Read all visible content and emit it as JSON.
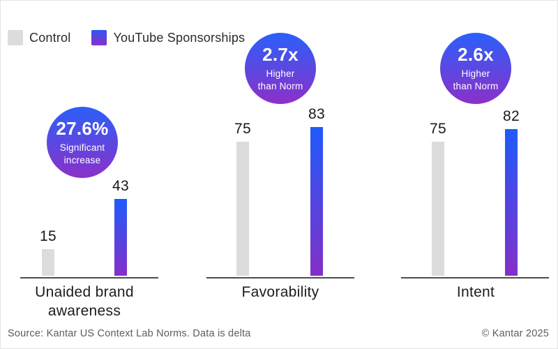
{
  "legend": {
    "items": [
      {
        "label": "Control",
        "color": "#dcdcdc"
      },
      {
        "label": "YouTube Sponsorships",
        "gradient_top": "#2f55f2",
        "gradient_bottom": "#8c2fc9"
      }
    ]
  },
  "chart_data": {
    "type": "bar",
    "categories": [
      "Unaided brand awareness",
      "Favorability",
      "Intent"
    ],
    "series": [
      {
        "name": "Control",
        "values": [
          15,
          75,
          75
        ],
        "color": "#dcdcdc"
      },
      {
        "name": "YouTube Sponsorships",
        "values": [
          43,
          83,
          82
        ],
        "gradient_top": "#1f5afb",
        "gradient_bottom": "#8330c8"
      }
    ],
    "annotations": [
      {
        "headline": "27.6%",
        "sub_line1": "Significant",
        "sub_line2": "increase"
      },
      {
        "headline": "2.7x",
        "sub_line1": "Higher",
        "sub_line2": "than Norm"
      },
      {
        "headline": "2.6x",
        "sub_line1": "Higher",
        "sub_line2": "than Norm"
      }
    ],
    "ylim": [
      0,
      95
    ],
    "grid": false,
    "legend_position": "top-left"
  },
  "footer": {
    "source": "Source: Kantar US Context Lab Norms. Data is delta",
    "copyright": "© Kantar 2025"
  },
  "colors": {
    "control_bar": "#dcdcdc",
    "sponsorship_gradient_top": "#1f5afb",
    "sponsorship_gradient_bottom": "#8330c8",
    "badge_gradient_top": "#2a60f9",
    "badge_gradient_bottom": "#8c30c9",
    "axis_line": "#4d4d4d",
    "text_dark": "#1a1a1a",
    "footer_text": "#5c5c5c"
  }
}
